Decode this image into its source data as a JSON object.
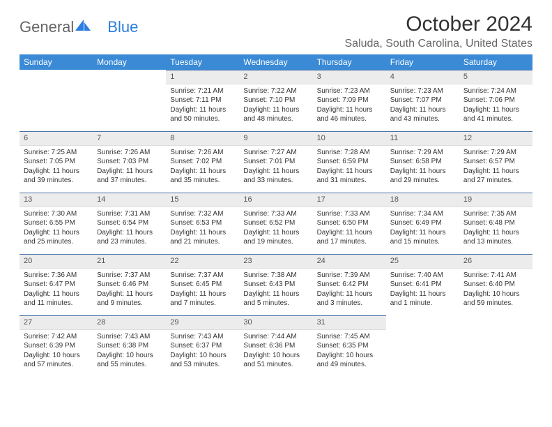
{
  "logo": {
    "text_general": "General",
    "text_blue": "Blue"
  },
  "title": "October 2024",
  "location": "Saluda, South Carolina, United States",
  "colors": {
    "header_bg": "#3a8ad6",
    "header_fg": "#ffffff",
    "daynum_bg": "#ececec",
    "daynum_border_top": "#4a72a8",
    "logo_blue": "#2a7de1",
    "logo_gray": "#666666",
    "body_text": "#333333"
  },
  "weekdays": [
    "Sunday",
    "Monday",
    "Tuesday",
    "Wednesday",
    "Thursday",
    "Friday",
    "Saturday"
  ],
  "weeks": [
    [
      {
        "day": "",
        "sunrise": "",
        "sunset": "",
        "daylight": ""
      },
      {
        "day": "",
        "sunrise": "",
        "sunset": "",
        "daylight": ""
      },
      {
        "day": "1",
        "sunrise": "Sunrise: 7:21 AM",
        "sunset": "Sunset: 7:11 PM",
        "daylight": "Daylight: 11 hours and 50 minutes."
      },
      {
        "day": "2",
        "sunrise": "Sunrise: 7:22 AM",
        "sunset": "Sunset: 7:10 PM",
        "daylight": "Daylight: 11 hours and 48 minutes."
      },
      {
        "day": "3",
        "sunrise": "Sunrise: 7:23 AM",
        "sunset": "Sunset: 7:09 PM",
        "daylight": "Daylight: 11 hours and 46 minutes."
      },
      {
        "day": "4",
        "sunrise": "Sunrise: 7:23 AM",
        "sunset": "Sunset: 7:07 PM",
        "daylight": "Daylight: 11 hours and 43 minutes."
      },
      {
        "day": "5",
        "sunrise": "Sunrise: 7:24 AM",
        "sunset": "Sunset: 7:06 PM",
        "daylight": "Daylight: 11 hours and 41 minutes."
      }
    ],
    [
      {
        "day": "6",
        "sunrise": "Sunrise: 7:25 AM",
        "sunset": "Sunset: 7:05 PM",
        "daylight": "Daylight: 11 hours and 39 minutes."
      },
      {
        "day": "7",
        "sunrise": "Sunrise: 7:26 AM",
        "sunset": "Sunset: 7:03 PM",
        "daylight": "Daylight: 11 hours and 37 minutes."
      },
      {
        "day": "8",
        "sunrise": "Sunrise: 7:26 AM",
        "sunset": "Sunset: 7:02 PM",
        "daylight": "Daylight: 11 hours and 35 minutes."
      },
      {
        "day": "9",
        "sunrise": "Sunrise: 7:27 AM",
        "sunset": "Sunset: 7:01 PM",
        "daylight": "Daylight: 11 hours and 33 minutes."
      },
      {
        "day": "10",
        "sunrise": "Sunrise: 7:28 AM",
        "sunset": "Sunset: 6:59 PM",
        "daylight": "Daylight: 11 hours and 31 minutes."
      },
      {
        "day": "11",
        "sunrise": "Sunrise: 7:29 AM",
        "sunset": "Sunset: 6:58 PM",
        "daylight": "Daylight: 11 hours and 29 minutes."
      },
      {
        "day": "12",
        "sunrise": "Sunrise: 7:29 AM",
        "sunset": "Sunset: 6:57 PM",
        "daylight": "Daylight: 11 hours and 27 minutes."
      }
    ],
    [
      {
        "day": "13",
        "sunrise": "Sunrise: 7:30 AM",
        "sunset": "Sunset: 6:55 PM",
        "daylight": "Daylight: 11 hours and 25 minutes."
      },
      {
        "day": "14",
        "sunrise": "Sunrise: 7:31 AM",
        "sunset": "Sunset: 6:54 PM",
        "daylight": "Daylight: 11 hours and 23 minutes."
      },
      {
        "day": "15",
        "sunrise": "Sunrise: 7:32 AM",
        "sunset": "Sunset: 6:53 PM",
        "daylight": "Daylight: 11 hours and 21 minutes."
      },
      {
        "day": "16",
        "sunrise": "Sunrise: 7:33 AM",
        "sunset": "Sunset: 6:52 PM",
        "daylight": "Daylight: 11 hours and 19 minutes."
      },
      {
        "day": "17",
        "sunrise": "Sunrise: 7:33 AM",
        "sunset": "Sunset: 6:50 PM",
        "daylight": "Daylight: 11 hours and 17 minutes."
      },
      {
        "day": "18",
        "sunrise": "Sunrise: 7:34 AM",
        "sunset": "Sunset: 6:49 PM",
        "daylight": "Daylight: 11 hours and 15 minutes."
      },
      {
        "day": "19",
        "sunrise": "Sunrise: 7:35 AM",
        "sunset": "Sunset: 6:48 PM",
        "daylight": "Daylight: 11 hours and 13 minutes."
      }
    ],
    [
      {
        "day": "20",
        "sunrise": "Sunrise: 7:36 AM",
        "sunset": "Sunset: 6:47 PM",
        "daylight": "Daylight: 11 hours and 11 minutes."
      },
      {
        "day": "21",
        "sunrise": "Sunrise: 7:37 AM",
        "sunset": "Sunset: 6:46 PM",
        "daylight": "Daylight: 11 hours and 9 minutes."
      },
      {
        "day": "22",
        "sunrise": "Sunrise: 7:37 AM",
        "sunset": "Sunset: 6:45 PM",
        "daylight": "Daylight: 11 hours and 7 minutes."
      },
      {
        "day": "23",
        "sunrise": "Sunrise: 7:38 AM",
        "sunset": "Sunset: 6:43 PM",
        "daylight": "Daylight: 11 hours and 5 minutes."
      },
      {
        "day": "24",
        "sunrise": "Sunrise: 7:39 AM",
        "sunset": "Sunset: 6:42 PM",
        "daylight": "Daylight: 11 hours and 3 minutes."
      },
      {
        "day": "25",
        "sunrise": "Sunrise: 7:40 AM",
        "sunset": "Sunset: 6:41 PM",
        "daylight": "Daylight: 11 hours and 1 minute."
      },
      {
        "day": "26",
        "sunrise": "Sunrise: 7:41 AM",
        "sunset": "Sunset: 6:40 PM",
        "daylight": "Daylight: 10 hours and 59 minutes."
      }
    ],
    [
      {
        "day": "27",
        "sunrise": "Sunrise: 7:42 AM",
        "sunset": "Sunset: 6:39 PM",
        "daylight": "Daylight: 10 hours and 57 minutes."
      },
      {
        "day": "28",
        "sunrise": "Sunrise: 7:43 AM",
        "sunset": "Sunset: 6:38 PM",
        "daylight": "Daylight: 10 hours and 55 minutes."
      },
      {
        "day": "29",
        "sunrise": "Sunrise: 7:43 AM",
        "sunset": "Sunset: 6:37 PM",
        "daylight": "Daylight: 10 hours and 53 minutes."
      },
      {
        "day": "30",
        "sunrise": "Sunrise: 7:44 AM",
        "sunset": "Sunset: 6:36 PM",
        "daylight": "Daylight: 10 hours and 51 minutes."
      },
      {
        "day": "31",
        "sunrise": "Sunrise: 7:45 AM",
        "sunset": "Sunset: 6:35 PM",
        "daylight": "Daylight: 10 hours and 49 minutes."
      },
      {
        "day": "",
        "sunrise": "",
        "sunset": "",
        "daylight": ""
      },
      {
        "day": "",
        "sunrise": "",
        "sunset": "",
        "daylight": ""
      }
    ]
  ]
}
